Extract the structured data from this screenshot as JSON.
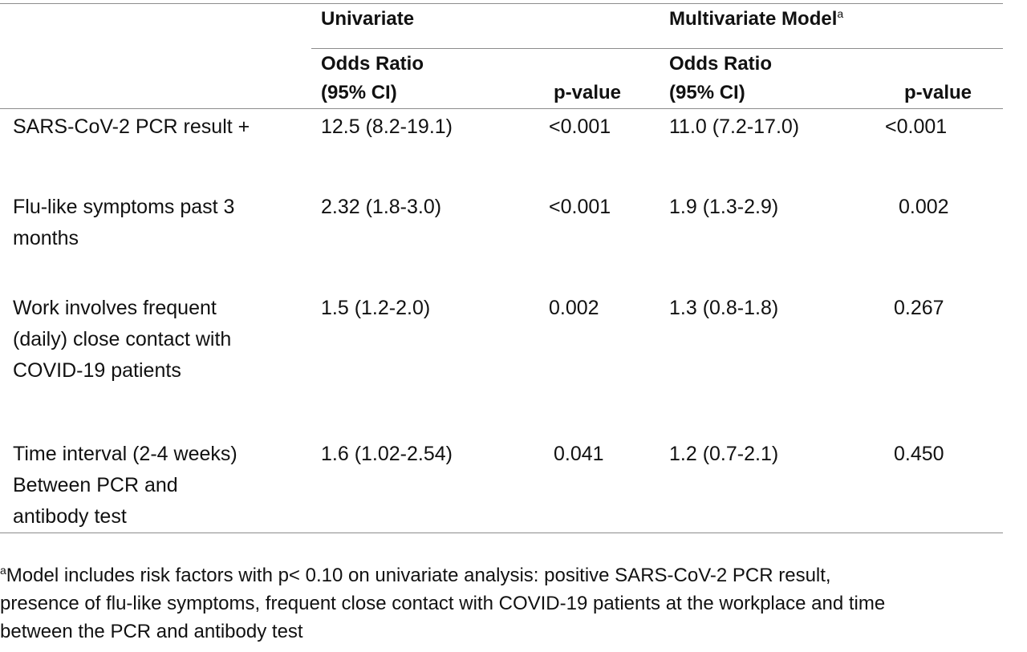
{
  "table": {
    "groups": {
      "univariate": "Univariate",
      "multivariate": "Multivariate Model",
      "multivariate_mark": "a"
    },
    "subheaders": {
      "uni_or_line1": "Odds Ratio",
      "uni_or_line2": "(95% CI)",
      "uni_p": "p-value",
      "multi_or_line1": "Odds Ratio",
      "multi_or_line2": "(95% CI)",
      "multi_p": "p-value"
    },
    "rows": [
      {
        "label": [
          "SARS-CoV-2 PCR result +"
        ],
        "uni_or": "12.5 (8.2-19.1)",
        "uni_p": "<0.001",
        "multi_or": "11.0 (7.2-17.0)",
        "multi_p": "<0.001"
      },
      {
        "label": [
          "Flu-like symptoms past 3",
          "months"
        ],
        "uni_or": "2.32 (1.8-3.0)",
        "uni_p": "<0.001",
        "multi_or": "1.9 (1.3-2.9)",
        "multi_p": "0.002"
      },
      {
        "label": [
          "Work involves frequent",
          "(daily) close contact with",
          "COVID-19 patients"
        ],
        "uni_or": "1.5 (1.2-2.0)",
        "uni_p": "0.002",
        "multi_or": "1.3 (0.8-1.8)",
        "multi_p": "0.267"
      },
      {
        "label": [
          "Time interval (2-4 weeks)",
          "Between PCR and",
          "antibody test"
        ],
        "uni_or": "1.6 (1.02-2.54)",
        "uni_p": "0.041",
        "multi_or": "1.2 (0.7-2.1)",
        "multi_p": "0.450"
      }
    ]
  },
  "footnote": {
    "mark": "a",
    "lines": [
      "Model includes risk factors with p< 0.10 on univariate analysis: positive SARS-CoV-2 PCR result,",
      "presence of flu-like symptoms, frequent close contact with COVID-19 patients at the workplace and time",
      "between the PCR and antibody test"
    ]
  }
}
